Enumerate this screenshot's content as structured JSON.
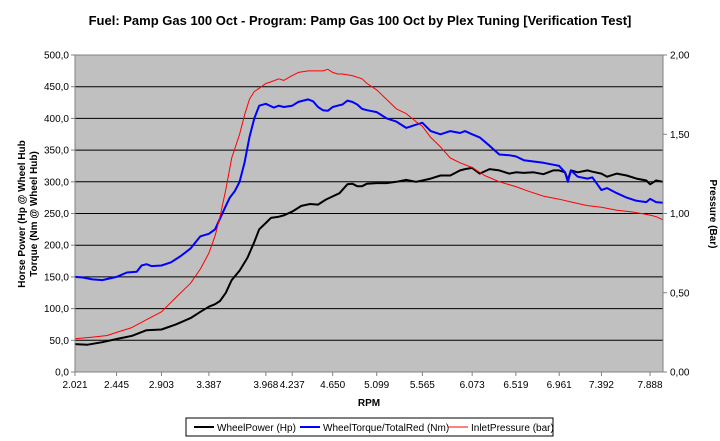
{
  "chart_data": {
    "type": "line",
    "title": "Fuel: Pamp Gas 100 Oct - Program: Pamp Gas 100 Oct by Plex Tuning [Verification Test]",
    "xlabel": "RPM",
    "ylabel_left_line1": "Horse Power (Hp @ Wheel Hub",
    "ylabel_left_line2": "Torque (Nm @ Wheel Hub)",
    "ylabel_right": "Pressure (Bar)",
    "xlim": [
      2021,
      8020
    ],
    "ylim_left": [
      0,
      500
    ],
    "ylim_right": [
      0,
      2
    ],
    "grid": true,
    "legend_position": "bottom",
    "x_tick_values": [
      2021,
      2445,
      2903,
      3387,
      3968,
      4237,
      4650,
      5099,
      5565,
      6073,
      6519,
      6961,
      7392,
      7888
    ],
    "x_tick_labels": [
      "2.021",
      "2.445",
      "2.903",
      "3.387",
      "3.968",
      "4.237",
      "4.650",
      "5.099",
      "5.565",
      "6.073",
      "6.519",
      "6.961",
      "7.392",
      "7.888"
    ],
    "y_left_ticks": [
      "0,0",
      "50,0",
      "100,0",
      "150,0",
      "200,0",
      "250,0",
      "300,0",
      "350,0",
      "400,0",
      "450,0",
      "500,0"
    ],
    "y_right_ticks": [
      "0,00",
      "0,50",
      "1,00",
      "1,50",
      "2,00"
    ],
    "series": [
      {
        "name": "WheelPower (Hp)",
        "color": "#000000",
        "axis": "left",
        "x": [
          2021,
          2150,
          2300,
          2445,
          2600,
          2750,
          2903,
          3050,
          3200,
          3300,
          3387,
          3450,
          3500,
          3560,
          3620,
          3700,
          3780,
          3850,
          3900,
          3968,
          4020,
          4100,
          4150,
          4237,
          4330,
          4420,
          4500,
          4580,
          4650,
          4720,
          4800,
          4850,
          4900,
          4950,
          5000,
          5099,
          5200,
          5300,
          5400,
          5500,
          5565,
          5650,
          5750,
          5850,
          5950,
          6000,
          6073,
          6150,
          6250,
          6350,
          6450,
          6519,
          6600,
          6700,
          6800,
          6900,
          6961,
          7020,
          7050,
          7080,
          7150,
          7250,
          7300,
          7392,
          7450,
          7550,
          7650,
          7750,
          7850,
          7888,
          7950,
          8020
        ],
        "values": [
          44,
          43,
          47,
          52,
          57,
          66,
          67,
          75,
          85,
          95,
          103,
          107,
          112,
          125,
          145,
          160,
          180,
          205,
          225,
          235,
          243,
          245,
          247,
          253,
          262,
          265,
          264,
          272,
          277,
          282,
          296,
          297,
          293,
          293,
          297,
          298,
          298,
          300,
          303,
          300,
          302,
          305,
          310,
          310,
          318,
          320,
          322,
          313,
          320,
          318,
          313,
          315,
          314,
          315,
          312,
          318,
          318,
          315,
          303,
          318,
          315,
          318,
          316,
          313,
          308,
          313,
          310,
          305,
          302,
          296,
          302,
          300
        ]
      },
      {
        "name": "WheelTorque/TotalRed (Nm)",
        "color": "#0000ff",
        "axis": "left",
        "x": [
          2021,
          2100,
          2200,
          2300,
          2445,
          2550,
          2650,
          2700,
          2750,
          2800,
          2903,
          3000,
          3100,
          3200,
          3300,
          3387,
          3450,
          3500,
          3560,
          3600,
          3650,
          3700,
          3750,
          3800,
          3850,
          3900,
          3968,
          4050,
          4100,
          4150,
          4237,
          4300,
          4350,
          4400,
          4450,
          4500,
          4550,
          4600,
          4650,
          4700,
          4750,
          4800,
          4850,
          4900,
          4950,
          5000,
          5099,
          5200,
          5300,
          5400,
          5500,
          5565,
          5650,
          5750,
          5850,
          5950,
          6000,
          6073,
          6150,
          6250,
          6350,
          6450,
          6519,
          6600,
          6700,
          6800,
          6900,
          6961,
          7020,
          7050,
          7080,
          7150,
          7250,
          7300,
          7392,
          7450,
          7550,
          7650,
          7750,
          7850,
          7888,
          7950,
          8020
        ],
        "values": [
          150,
          149,
          146,
          145,
          150,
          157,
          158,
          168,
          170,
          167,
          168,
          173,
          183,
          195,
          214,
          218,
          225,
          242,
          262,
          275,
          285,
          300,
          330,
          370,
          400,
          420,
          423,
          417,
          420,
          418,
          420,
          426,
          428,
          430,
          427,
          418,
          413,
          412,
          418,
          420,
          422,
          428,
          426,
          422,
          415,
          413,
          410,
          400,
          395,
          385,
          390,
          393,
          380,
          375,
          380,
          377,
          380,
          375,
          370,
          357,
          343,
          342,
          340,
          334,
          332,
          330,
          327,
          325,
          315,
          300,
          318,
          308,
          305,
          307,
          287,
          290,
          282,
          275,
          270,
          268,
          273,
          268,
          267
        ]
      },
      {
        "name": "InletPressure (bar)",
        "color": "#ff0000",
        "axis": "right",
        "x": [
          2021,
          2200,
          2350,
          2445,
          2600,
          2750,
          2903,
          3050,
          3200,
          3300,
          3387,
          3450,
          3500,
          3560,
          3620,
          3700,
          3750,
          3800,
          3850,
          3900,
          3968,
          4020,
          4100,
          4150,
          4237,
          4300,
          4400,
          4500,
          4550,
          4600,
          4650,
          4700,
          4750,
          4850,
          4950,
          5000,
          5099,
          5200,
          5300,
          5400,
          5500,
          5565,
          5650,
          5750,
          5850,
          5950,
          6073,
          6200,
          6350,
          6519,
          6650,
          6800,
          6961,
          7100,
          7250,
          7392,
          7550,
          7700,
          7800,
          7888,
          7950,
          8020
        ],
        "values": [
          0.21,
          0.22,
          0.23,
          0.25,
          0.28,
          0.33,
          0.38,
          0.47,
          0.56,
          0.65,
          0.75,
          0.86,
          0.98,
          1.15,
          1.35,
          1.5,
          1.62,
          1.72,
          1.77,
          1.79,
          1.82,
          1.83,
          1.85,
          1.84,
          1.87,
          1.89,
          1.9,
          1.9,
          1.9,
          1.91,
          1.89,
          1.88,
          1.88,
          1.87,
          1.85,
          1.82,
          1.78,
          1.72,
          1.66,
          1.63,
          1.58,
          1.55,
          1.48,
          1.42,
          1.35,
          1.32,
          1.29,
          1.24,
          1.2,
          1.17,
          1.14,
          1.11,
          1.09,
          1.07,
          1.05,
          1.04,
          1.02,
          1.01,
          1.0,
          0.99,
          0.98,
          0.96
        ]
      }
    ]
  }
}
